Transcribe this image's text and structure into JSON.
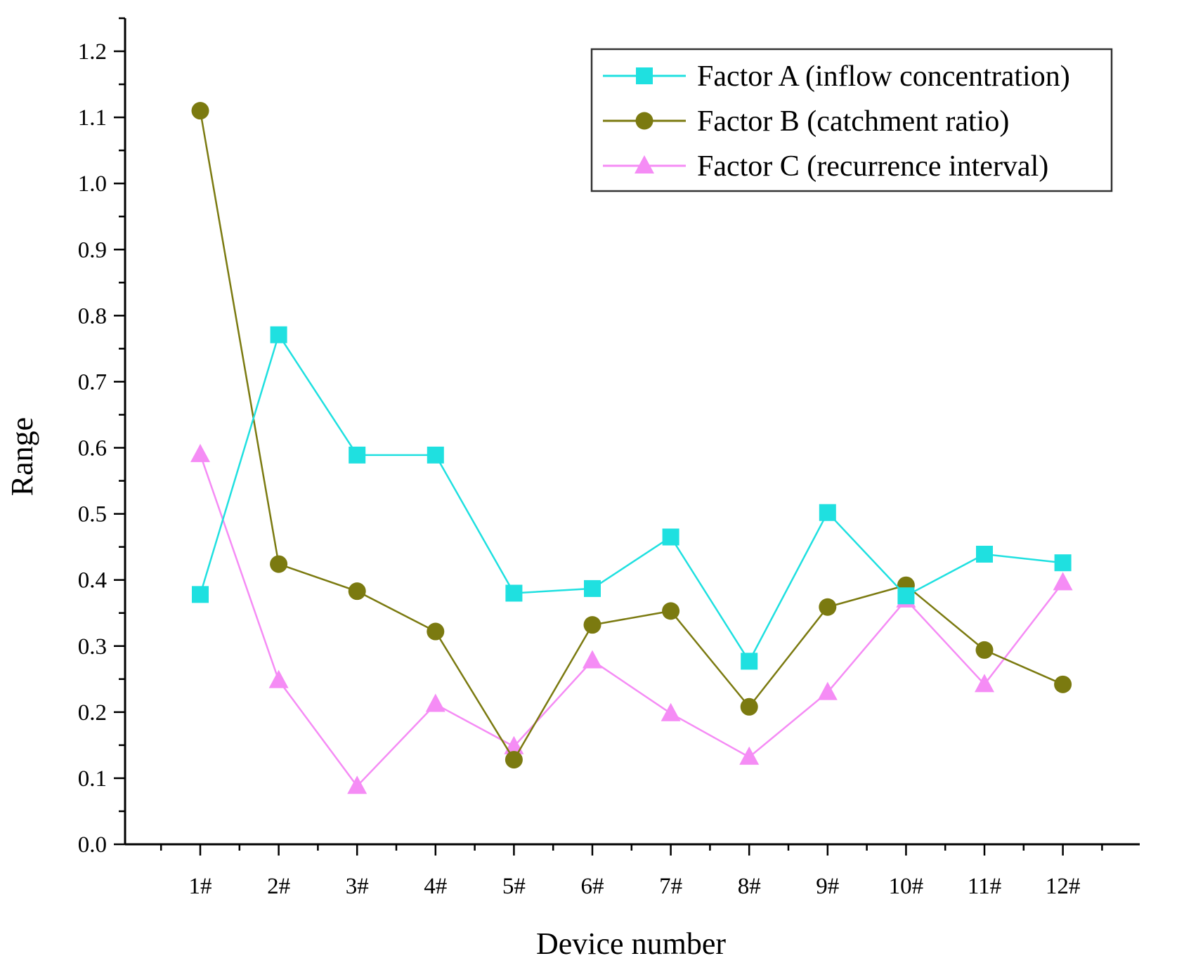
{
  "chart_data": {
    "type": "line",
    "title": "",
    "xlabel": "Device number",
    "ylabel": "Range",
    "categories": [
      "1#",
      "2#",
      "3#",
      "4#",
      "5#",
      "6#",
      "7#",
      "8#",
      "9#",
      "10#",
      "11#",
      "12#"
    ],
    "ylim": [
      0,
      1.25
    ],
    "yticks": [
      "0.0",
      "0.1",
      "0.2",
      "0.3",
      "0.4",
      "0.5",
      "0.6",
      "0.7",
      "0.8",
      "0.9",
      "1.0",
      "1.1",
      "1.2"
    ],
    "grid": false,
    "legend_position": "top-right",
    "series": [
      {
        "name": "Factor A (inflow concentration)",
        "marker": "square",
        "color": "#1fe0e0",
        "values": [
          0.378,
          0.771,
          0.589,
          0.589,
          0.38,
          0.387,
          0.465,
          0.277,
          0.502,
          0.376,
          0.439,
          0.426
        ]
      },
      {
        "name": "Factor B (catchment ratio)",
        "marker": "circle",
        "color": "#7b7a10",
        "values": [
          1.11,
          0.424,
          0.383,
          0.322,
          0.128,
          0.332,
          0.353,
          0.208,
          0.359,
          0.392,
          0.294,
          0.242
        ]
      },
      {
        "name": "Factor C (recurrence interval)",
        "marker": "triangle",
        "color": "#f58cf5",
        "values": [
          0.59,
          0.248,
          0.088,
          0.212,
          0.148,
          0.278,
          0.198,
          0.132,
          0.23,
          0.37,
          0.242,
          0.396
        ]
      }
    ]
  }
}
